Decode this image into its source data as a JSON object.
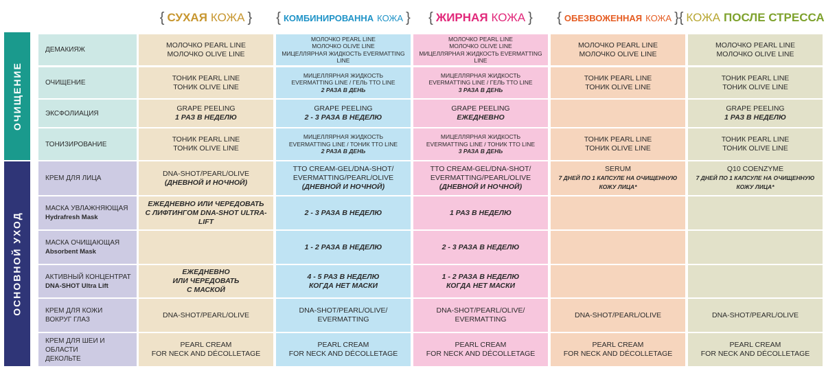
{
  "colors": {
    "bg_dry": "#efe2c9",
    "bg_combo": "#bfe3f3",
    "bg_oily": "#f7c6dd",
    "bg_dehydr": "#f6d5bd",
    "bg_stress": "#e2e1c9",
    "bg_label_cleanse": "#cde8e5",
    "bg_label_care": "#cdcbe3",
    "sect_cleanse": "#1a9a8d",
    "sect_care": "#2f3577",
    "hdr_dry": "#c7962f",
    "hdr_combo": "#1f93c7",
    "hdr_oily": "#e1287a",
    "hdr_dehydr": "#e55c22",
    "hdr_stress": "#7ea22d",
    "hdr_stress_w2": "#b8a733"
  },
  "headers": [
    {
      "open": "{",
      "w1": "СУХАЯ",
      "w2": "КОЖА",
      "close": "}"
    },
    {
      "open": "{",
      "w1": "КОМБИНИРОВАННА",
      "w2": "КОЖА",
      "close": "}"
    },
    {
      "open": "{",
      "w1": "ЖИРНАЯ",
      "w2": "КОЖА",
      "close": "}"
    },
    {
      "open": "{",
      "w1": "ОБЕЗВОЖЕННАЯ",
      "w2": "КОЖА",
      "close": "}"
    },
    {
      "open": "{",
      "w1": "КОЖА",
      "w2": "ПОСЛЕ СТРЕССА",
      "close": "}"
    }
  ],
  "sections": {
    "cleansing": "ОЧИЩЕНИЕ",
    "care": "ОСНОВНОЙ УХОД"
  },
  "rows": [
    {
      "label": [
        "ДЕМАКИЯЖ"
      ],
      "cells": [
        [
          "МОЛОЧКО PEARL LINE",
          "МОЛОЧКО OLIVE LINE"
        ],
        [
          "МОЛОЧКО PEARL LINE",
          "МОЛОЧКО OLIVE LINE",
          "МИЦЕЛЛЯРНАЯ ЖИДКОСТЬ EVERMATTING LINE"
        ],
        [
          "МОЛОЧКО PEARL LINE",
          "МОЛОЧКО OLIVE LINE",
          "МИЦЕЛЛЯРНАЯ ЖИДКОСТЬ EVERMATTING LINE"
        ],
        [
          "МОЛОЧКО PEARL LINE",
          "МОЛОЧКО OLIVE LINE"
        ],
        [
          "МОЛОЧКО PEARL LINE",
          "МОЛОЧКО OLIVE LINE"
        ]
      ]
    },
    {
      "label": [
        "ОЧИЩЕНИЕ"
      ],
      "cells": [
        [
          "ТОНИК PEARL LINE",
          "ТОНИК OLIVE LINE"
        ],
        [
          "МИЦЕЛЛЯРНАЯ ЖИДКОСТЬ",
          "EVERMATTING LINE / ГЕЛЬ TTO LINE",
          "2 РАЗА В ДЕНЬ"
        ],
        [
          "МИЦЕЛЛЯРНАЯ ЖИДКОСТЬ",
          "EVERMATTING LINE / ГЕЛЬ TTO LINE",
          "3 РАЗА В ДЕНЬ"
        ],
        [
          "ТОНИК PEARL LINE",
          "ТОНИК OLIVE LINE"
        ],
        [
          "ТОНИК PEARL LINE",
          "ТОНИК OLIVE LINE"
        ]
      ]
    },
    {
      "label": [
        "ЭКСФОЛИАЦИЯ"
      ],
      "cells": [
        [
          "GRAPE PEELING",
          "1 РАЗ В НЕДЕЛЮ"
        ],
        [
          "GRAPE PEELING",
          "2 - 3 РАЗА В НЕДЕЛЮ"
        ],
        [
          "GRAPE PEELING",
          "ЕЖЕДНЕВНО"
        ],
        [],
        [
          "GRAPE PEELING",
          "1 РАЗ В НЕДЕЛЮ"
        ]
      ]
    },
    {
      "label": [
        "ТОНИЗИРОВАНИЕ"
      ],
      "cells": [
        [
          "ТОНИК PEARL LINE",
          "ТОНИК OLIVE LINE"
        ],
        [
          "МИЦЕЛЛЯРНАЯ ЖИДКОСТЬ",
          "EVERMATTING LINE / ТОНИК TTO LINE",
          "2 РАЗА В ДЕНЬ"
        ],
        [
          "МИЦЕЛЛЯРНАЯ ЖИДКОСТЬ",
          "EVERMATTING LINE / ТОНИК TTO LINE",
          "3 РАЗА В ДЕНЬ"
        ],
        [
          "ТОНИК PEARL LINE",
          "ТОНИК OLIVE LINE"
        ],
        [
          "ТОНИК PEARL LINE",
          "ТОНИК OLIVE LINE"
        ]
      ]
    },
    {
      "label": [
        "КРЕМ ДЛЯ ЛИЦА"
      ],
      "cells": [
        [
          "DNA-SHOT/PEARL/OLIVE",
          "(ДНЕВНОЙ И НОЧНОЙ)"
        ],
        [
          "TTO CREAM-GEL/DNA-SHOT/",
          "EVERMATTING/PEARL/OLIVE",
          "(ДНЕВНОЙ И НОЧНОЙ)"
        ],
        [
          "TTO CREAM-GEL/DNA-SHOT/",
          "EVERMATTING/PEARL/OLIVE",
          "(ДНЕВНОЙ И НОЧНОЙ)"
        ],
        [
          "SERUM",
          "7 ДНЕЙ ПО 1 КАПСУЛЕ НА ОЧИЩЕННУЮ",
          "КОЖУ ЛИЦА*"
        ],
        [
          "Q10 COENZYME",
          "7 ДНЕЙ ПО 1 КАПСУЛЕ НА ОЧИЩЕННУЮ",
          "КОЖУ ЛИЦА*"
        ]
      ]
    },
    {
      "label": [
        "МАСКА УВЛАЖНЯЮЩАЯ",
        "Hydrafresh Mask"
      ],
      "cells": [
        [
          "ЕЖЕДНЕВНО ИЛИ ЧЕРЕДОВАТЬ",
          "С ЛИФТИНГОМ DNA-SHOT ULTRA-LIFT"
        ],
        [
          "2 - 3 РАЗА В НЕДЕЛЮ"
        ],
        [
          "1 РАЗ В НЕДЕЛЮ"
        ],
        [],
        []
      ]
    },
    {
      "label": [
        "МАСКА ОЧИЩАЮЩАЯ",
        "Absorbent Mask"
      ],
      "cells": [
        [],
        [
          "1 - 2 РАЗА В НЕДЕЛЮ"
        ],
        [
          "2 - 3 РАЗА В НЕДЕЛЮ"
        ],
        [],
        []
      ]
    },
    {
      "label": [
        "АКТИВНЫЙ КОНЦЕНТРАТ",
        "DNA-SHOT Ultra Lift"
      ],
      "cells": [
        [
          "ЕЖЕДНЕВНО",
          "ИЛИ ЧЕРЕДОВАТЬ",
          "С МАСКОЙ"
        ],
        [
          "4 - 5 РАЗ В НЕДЕЛЮ",
          "КОГДА НЕТ МАСКИ"
        ],
        [
          "1 - 2 РАЗА В НЕДЕЛЮ",
          "КОГДА НЕТ МАСКИ"
        ],
        [],
        []
      ]
    },
    {
      "label": [
        "КРЕМ ДЛЯ КОЖИ",
        "ВОКРУГ ГЛАЗ"
      ],
      "cells": [
        [
          "DNA-SHOT/PEARL/OLIVE"
        ],
        [
          "DNA-SHOT/PEARL/OLIVE/",
          "EVERMATTING"
        ],
        [
          "DNA-SHOT/PEARL/OLIVE/",
          "EVERMATTING"
        ],
        [
          "DNA-SHOT/PEARL/OLIVE"
        ],
        [
          "DNA-SHOT/PEARL/OLIVE"
        ]
      ]
    },
    {
      "label": [
        "КРЕМ ДЛЯ ШЕИ И ОБЛАСТИ",
        "ДЕКОЛЬТЕ"
      ],
      "cells": [
        [
          "PEARL CREAM",
          "FOR NECK AND DÉCOLLETAGE"
        ],
        [
          "PEARL CREAM",
          "FOR NECK AND DÉCOLLETAGE"
        ],
        [
          "PEARL CREAM",
          "FOR NECK AND DÉCOLLETAGE"
        ],
        [
          "PEARL CREAM",
          "FOR NECK AND DÉCOLLETAGE"
        ],
        [
          "PEARL CREAM",
          "FOR NECK AND DÉCOLLETAGE"
        ]
      ]
    }
  ]
}
